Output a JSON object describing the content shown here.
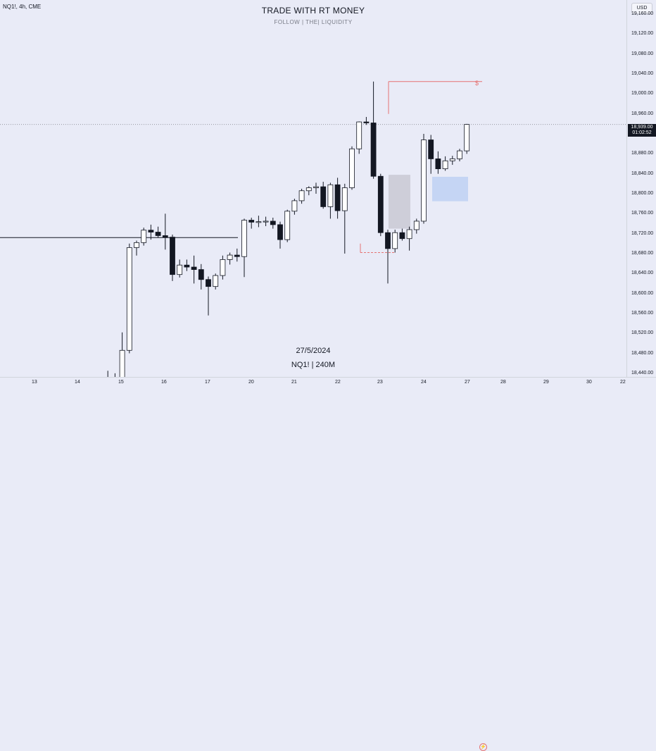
{
  "header": {
    "symbol": "NQ1!, 4h, CME",
    "title": "TRADE WITH RT MONEY",
    "subtitle": "FOLLOW   |   THE|   LIQUIDITY"
  },
  "watermark": {
    "line1": "27/5/2024",
    "line2": "NQ1! | 240M"
  },
  "annotation": {
    "dollar": "$"
  },
  "axis": {
    "currency": "USD",
    "price_labels": [
      "19,160.00",
      "19,120.00",
      "19,080.00",
      "19,040.00",
      "19,000.00",
      "18,960.00",
      "18,920.00",
      "18,880.00",
      "18,840.00",
      "18,800.00",
      "18,760.00",
      "18,720.00",
      "18,680.00",
      "18,640.00",
      "18,600.00",
      "18,560.00",
      "18,520.00",
      "18,480.00",
      "18,440.00"
    ],
    "current_price": "18,939.00",
    "countdown": "01:02:52",
    "date_labels": [
      "13",
      "14",
      "15",
      "16",
      "17",
      "20",
      "21",
      "22",
      "23",
      "24",
      "27",
      "28",
      "29",
      "30",
      "22"
    ]
  },
  "colors": {
    "background": "#e9ebf7",
    "up_body": "#ffffff",
    "down_body": "#131722",
    "wick": "#131722",
    "accent_red": "#e57373",
    "blue_zone": "#bcd0f3",
    "gray_zone": "#c9c9d3"
  },
  "chart_data": {
    "type": "candlestick",
    "timeframe": "4h",
    "y_scale": "price",
    "ylim": [
      18420,
      19180
    ],
    "x_labels": [
      "13",
      "14",
      "15",
      "16",
      "17",
      "20",
      "21",
      "22",
      "23",
      "24",
      "27",
      "28",
      "29",
      "30",
      "22"
    ],
    "candles": [
      {
        "o": 18420,
        "h": 18432,
        "l": 18395,
        "c": 18426
      },
      {
        "o": 18426,
        "h": 18445,
        "l": 18410,
        "c": 18428
      },
      {
        "o": 18428,
        "h": 18440,
        "l": 18418,
        "c": 18432
      },
      {
        "o": 18432,
        "h": 18522,
        "l": 18425,
        "c": 18486
      },
      {
        "o": 18486,
        "h": 18700,
        "l": 18480,
        "c": 18692
      },
      {
        "o": 18692,
        "h": 18706,
        "l": 18676,
        "c": 18702
      },
      {
        "o": 18702,
        "h": 18732,
        "l": 18696,
        "c": 18727
      },
      {
        "o": 18727,
        "h": 18738,
        "l": 18708,
        "c": 18723
      },
      {
        "o": 18723,
        "h": 18734,
        "l": 18712,
        "c": 18716
      },
      {
        "o": 18716,
        "h": 18760,
        "l": 18688,
        "c": 18713
      },
      {
        "o": 18713,
        "h": 18718,
        "l": 18625,
        "c": 18638
      },
      {
        "o": 18638,
        "h": 18668,
        "l": 18632,
        "c": 18657
      },
      {
        "o": 18657,
        "h": 18668,
        "l": 18645,
        "c": 18653
      },
      {
        "o": 18653,
        "h": 18676,
        "l": 18620,
        "c": 18648
      },
      {
        "o": 18648,
        "h": 18659,
        "l": 18608,
        "c": 18628
      },
      {
        "o": 18628,
        "h": 18634,
        "l": 18556,
        "c": 18614
      },
      {
        "o": 18614,
        "h": 18640,
        "l": 18608,
        "c": 18636
      },
      {
        "o": 18636,
        "h": 18676,
        "l": 18628,
        "c": 18668
      },
      {
        "o": 18668,
        "h": 18682,
        "l": 18658,
        "c": 18677
      },
      {
        "o": 18677,
        "h": 18690,
        "l": 18664,
        "c": 18674
      },
      {
        "o": 18674,
        "h": 18750,
        "l": 18633,
        "c": 18747
      },
      {
        "o": 18747,
        "h": 18752,
        "l": 18730,
        "c": 18743
      },
      {
        "o": 18743,
        "h": 18756,
        "l": 18733,
        "c": 18744
      },
      {
        "o": 18744,
        "h": 18754,
        "l": 18735,
        "c": 18745
      },
      {
        "o": 18745,
        "h": 18752,
        "l": 18730,
        "c": 18738
      },
      {
        "o": 18738,
        "h": 18744,
        "l": 18690,
        "c": 18708
      },
      {
        "o": 18708,
        "h": 18768,
        "l": 18703,
        "c": 18765
      },
      {
        "o": 18765,
        "h": 18790,
        "l": 18758,
        "c": 18786
      },
      {
        "o": 18786,
        "h": 18810,
        "l": 18780,
        "c": 18806
      },
      {
        "o": 18806,
        "h": 18815,
        "l": 18797,
        "c": 18812
      },
      {
        "o": 18812,
        "h": 18822,
        "l": 18800,
        "c": 18814
      },
      {
        "o": 18814,
        "h": 18824,
        "l": 18770,
        "c": 18774
      },
      {
        "o": 18774,
        "h": 18822,
        "l": 18750,
        "c": 18818
      },
      {
        "o": 18818,
        "h": 18832,
        "l": 18750,
        "c": 18766
      },
      {
        "o": 18766,
        "h": 18820,
        "l": 18680,
        "c": 18812
      },
      {
        "o": 18812,
        "h": 18895,
        "l": 18808,
        "c": 18890
      },
      {
        "o": 18890,
        "h": 18945,
        "l": 18880,
        "c": 18944
      },
      {
        "o": 18944,
        "h": 18954,
        "l": 18938,
        "c": 18942
      },
      {
        "o": 18942,
        "h": 19025,
        "l": 18830,
        "c": 18835
      },
      {
        "o": 18835,
        "h": 18840,
        "l": 18715,
        "c": 18722
      },
      {
        "o": 18722,
        "h": 18728,
        "l": 18620,
        "c": 18690
      },
      {
        "o": 18690,
        "h": 18728,
        "l": 18682,
        "c": 18722
      },
      {
        "o": 18722,
        "h": 18730,
        "l": 18706,
        "c": 18710
      },
      {
        "o": 18710,
        "h": 18734,
        "l": 18686,
        "c": 18728
      },
      {
        "o": 18728,
        "h": 18750,
        "l": 18720,
        "c": 18745
      },
      {
        "o": 18745,
        "h": 18920,
        "l": 18740,
        "c": 18908
      },
      {
        "o": 18908,
        "h": 18918,
        "l": 18840,
        "c": 18870
      },
      {
        "o": 18870,
        "h": 18885,
        "l": 18840,
        "c": 18850
      },
      {
        "o": 18850,
        "h": 18875,
        "l": 18846,
        "c": 18866
      },
      {
        "o": 18866,
        "h": 18876,
        "l": 18858,
        "c": 18870
      },
      {
        "o": 18870,
        "h": 18890,
        "l": 18865,
        "c": 18886
      },
      {
        "o": 18886,
        "h": 18940,
        "l": 18880,
        "c": 18939
      }
    ],
    "levels": [
      {
        "price": 18712,
        "style": "solid",
        "color": "#131722",
        "label": ""
      },
      {
        "price": 19025,
        "style": "solid",
        "color": "#e57373",
        "label": "$"
      },
      {
        "price": 18682,
        "style": "dashed",
        "color": "#e57373",
        "label": ""
      },
      {
        "price": 18939,
        "style": "dotted",
        "color": "#9598a1",
        "label": ""
      }
    ],
    "zones": [
      {
        "price_top": 18838,
        "price_bottom": 18730,
        "color": "gray"
      },
      {
        "price_top": 18834,
        "price_bottom": 18785,
        "color": "blue"
      }
    ]
  }
}
